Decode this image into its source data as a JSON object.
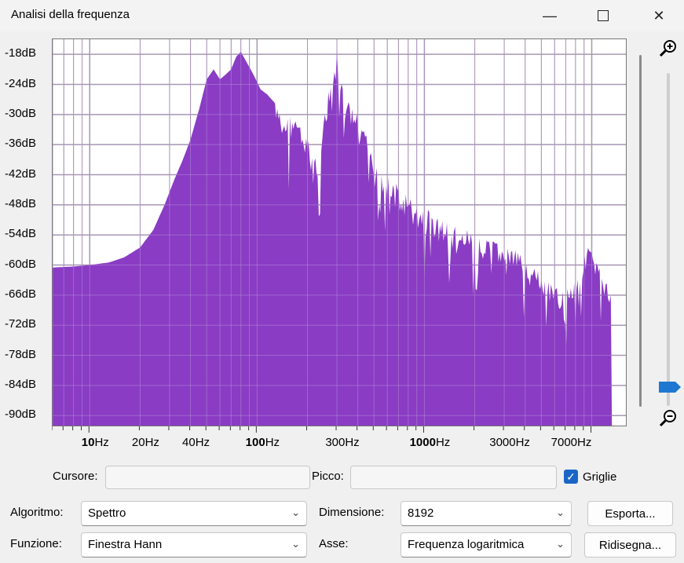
{
  "window": {
    "title": "Analisi della frequenza"
  },
  "colors": {
    "spectrum": "#8a3cc4",
    "grid": "#a0a0a0",
    "accent": "#1a66c7"
  },
  "chart_data": {
    "type": "area",
    "title": "",
    "xscale": "log",
    "xlim": [
      6,
      16000
    ],
    "ylim": [
      -92,
      -15
    ],
    "yticks": [
      "-18dB",
      "-24dB",
      "-30dB",
      "-36dB",
      "-42dB",
      "-48dB",
      "-54dB",
      "-60dB",
      "-66dB",
      "-72dB",
      "-78dB",
      "-84dB",
      "-90dB"
    ],
    "ytick_values": [
      -18,
      -24,
      -30,
      -36,
      -42,
      -48,
      -54,
      -60,
      -66,
      -72,
      -78,
      -84,
      -90
    ],
    "xticks": [
      "10Hz",
      "20Hz",
      "40Hz",
      "100Hz",
      "300Hz",
      "1000Hz",
      "3000Hz",
      "7000Hz"
    ],
    "xtick_values": [
      10,
      20,
      40,
      100,
      300,
      1000,
      3000,
      7000
    ],
    "grid": true,
    "points": [
      [
        6,
        -60.5
      ],
      [
        8,
        -60.3
      ],
      [
        10,
        -60
      ],
      [
        13,
        -59.5
      ],
      [
        16,
        -58.5
      ],
      [
        20,
        -56.5
      ],
      [
        24,
        -53
      ],
      [
        28,
        -48
      ],
      [
        32,
        -43
      ],
      [
        36,
        -39
      ],
      [
        40,
        -35
      ],
      [
        45,
        -29
      ],
      [
        50,
        -23
      ],
      [
        55,
        -21
      ],
      [
        60,
        -23
      ],
      [
        65,
        -22
      ],
      [
        70,
        -21
      ],
      [
        75,
        -18.5
      ],
      [
        80,
        -17.5
      ],
      [
        88,
        -20
      ],
      [
        95,
        -22
      ],
      [
        105,
        -25
      ],
      [
        115,
        -26
      ],
      [
        130,
        -28
      ],
      [
        150,
        -30
      ],
      [
        170,
        -29
      ],
      [
        190,
        -33
      ],
      [
        210,
        -36
      ],
      [
        230,
        -38
      ],
      [
        250,
        -30
      ],
      [
        280,
        -22
      ],
      [
        300,
        -17
      ],
      [
        330,
        -26
      ],
      [
        370,
        -28
      ],
      [
        400,
        -30
      ],
      [
        450,
        -34
      ],
      [
        520,
        -38
      ],
      [
        600,
        -42
      ],
      [
        700,
        -44
      ],
      [
        800,
        -46
      ],
      [
        900,
        -48
      ],
      [
        1000,
        -48
      ],
      [
        1200,
        -50
      ],
      [
        1500,
        -52
      ],
      [
        1800,
        -53
      ],
      [
        2200,
        -55
      ],
      [
        2600,
        -55
      ],
      [
        3000,
        -56
      ],
      [
        3500,
        -57
      ],
      [
        4200,
        -59
      ],
      [
        5000,
        -62
      ],
      [
        5800,
        -64
      ],
      [
        6600,
        -65
      ],
      [
        7500,
        -63
      ],
      [
        8500,
        -61
      ],
      [
        9500,
        -55
      ],
      [
        10500,
        -59
      ],
      [
        11500,
        -61
      ],
      [
        12500,
        -64
      ],
      [
        13000,
        -66
      ],
      [
        13200,
        -92
      ]
    ]
  },
  "controls": {
    "cursore_label": "Cursore:",
    "cursore_value": "",
    "picco_label": "Picco:",
    "picco_value": "",
    "griglie_label": "Griglie",
    "algoritmo_label": "Algoritmo:",
    "algoritmo_value": "Spettro",
    "dimensione_label": "Dimensione:",
    "dimensione_value": "8192",
    "esporta_label": "Esporta...",
    "funzione_label": "Funzione:",
    "funzione_value": "Finestra Hann",
    "asse_label": "Asse:",
    "asse_value": "Frequenza logaritmica",
    "ridisegna_label": "Ridisegna..."
  }
}
